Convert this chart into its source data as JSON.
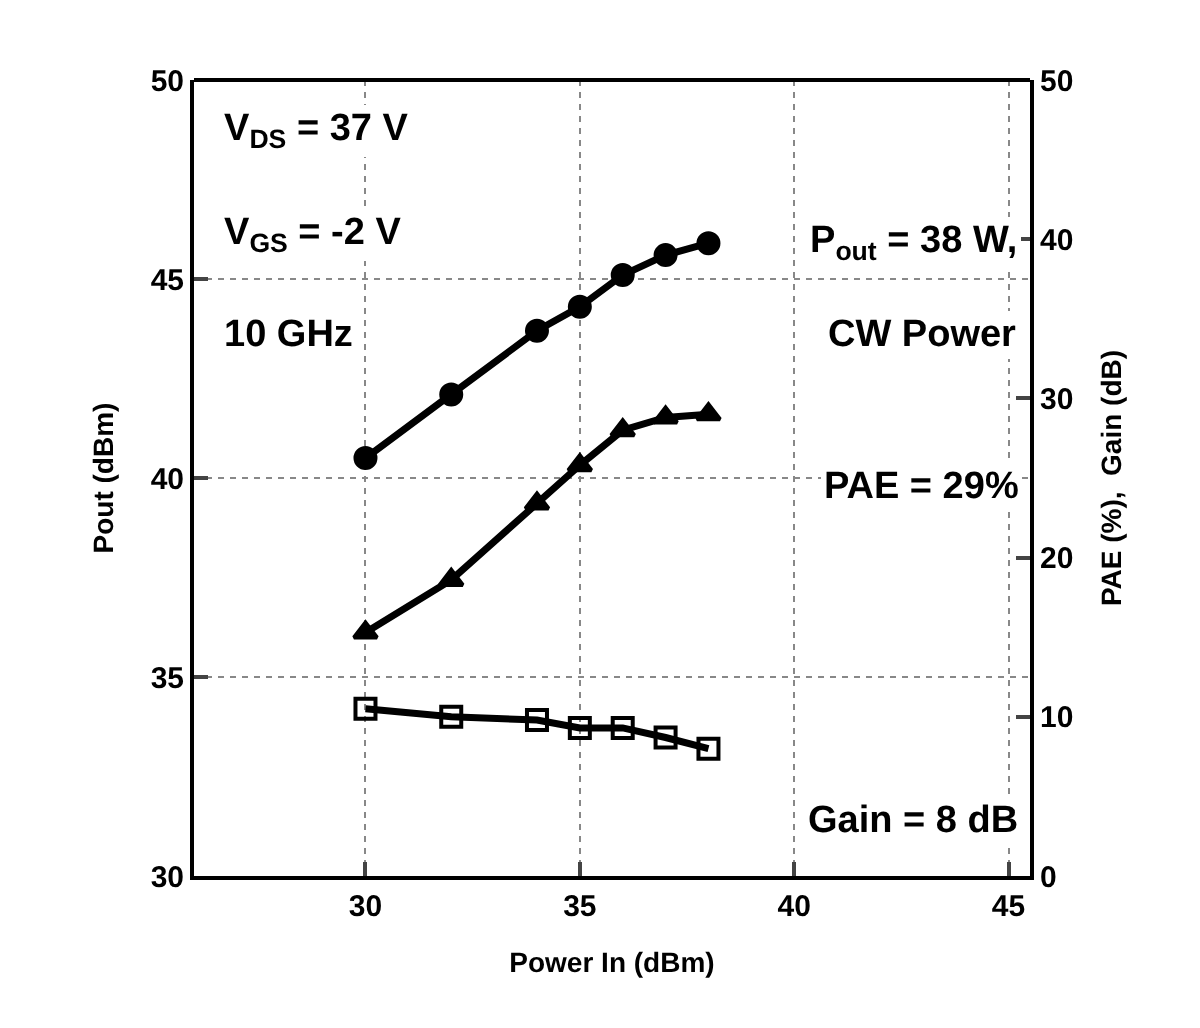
{
  "chart_data": {
    "type": "line",
    "xlabel": "Power In (dBm)",
    "ylabel": "Pout (dBm)",
    "y2label": "PAE (%),  Gain (dB)",
    "x": [
      30,
      32,
      34,
      35,
      36,
      37,
      38
    ],
    "series": [
      {
        "color": "#000000",
        "marker": "circle",
        "values": [
          40.5,
          42.1,
          43.7,
          44.3,
          45.1,
          45.6,
          45.9
        ]
      },
      {
        "color": "#000000",
        "marker": "triangle",
        "axis": "y2",
        "values": [
          15.3,
          18.6,
          23.4,
          25.8,
          28.0,
          28.8,
          29.0
        ]
      },
      {
        "color": "#000000",
        "marker": "square",
        "axis": "y2",
        "values": [
          10.5,
          10.0,
          9.8,
          9.3,
          9.3,
          8.7,
          8.0
        ]
      }
    ],
    "xlim": [
      26,
      45.5
    ],
    "xticks": [
      30,
      35,
      40,
      45
    ],
    "ylim": [
      30,
      50
    ],
    "yticks": [
      30,
      35,
      40,
      45,
      50
    ],
    "y2lim": [
      0,
      50
    ],
    "y2ticks": [
      0,
      10,
      20,
      30,
      40,
      50
    ],
    "grid": true,
    "line_style": "solid",
    "annotations": [
      "V$_{DS}$ = 37 V",
      "V$_{GS}$ = -2 V",
      "10 GHz",
      "P$_{out}$ = 38 W,",
      "CW Power",
      "PAE = 29%",
      "Gain = 8 dB"
    ]
  }
}
